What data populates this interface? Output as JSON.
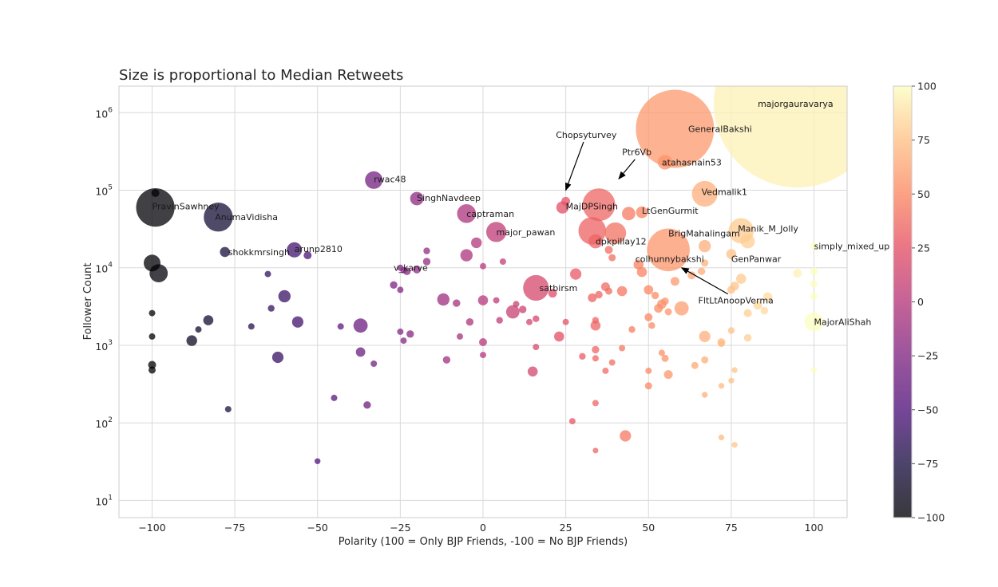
{
  "chart_data": {
    "type": "scatter",
    "title": "Size is proportional to Median Retweets",
    "xlabel": "Polarity (100 = Only BJP Friends, -100 = No BJP Friends)",
    "ylabel": "Follower Count",
    "xlim": [
      -110,
      110
    ],
    "ylim": [
      6,
      2200000
    ],
    "yscale": "log",
    "grid": true,
    "x_ticks": [
      {
        "value": -100,
        "label": "−100"
      },
      {
        "value": -75,
        "label": "−75"
      },
      {
        "value": -50,
        "label": "−50"
      },
      {
        "value": -25,
        "label": "−25"
      },
      {
        "value": 0,
        "label": "0"
      },
      {
        "value": 25,
        "label": "25"
      },
      {
        "value": 50,
        "label": "50"
      },
      {
        "value": 75,
        "label": "75"
      },
      {
        "value": 100,
        "label": "100"
      }
    ],
    "y_ticks": [
      {
        "value": 10,
        "base": "10",
        "exp": "1"
      },
      {
        "value": 100,
        "base": "10",
        "exp": "2"
      },
      {
        "value": 1000,
        "base": "10",
        "exp": "3"
      },
      {
        "value": 10000,
        "base": "10",
        "exp": "4"
      },
      {
        "value": 100000,
        "base": "10",
        "exp": "5"
      },
      {
        "value": 1000000,
        "base": "10",
        "exp": "6"
      }
    ],
    "colorbar": {
      "colormap": "magma",
      "min": -100,
      "max": 100,
      "ticks": [
        {
          "value": 100,
          "label": "100"
        },
        {
          "value": 75,
          "label": "75"
        },
        {
          "value": 50,
          "label": "50"
        },
        {
          "value": 25,
          "label": "25"
        },
        {
          "value": 0,
          "label": "0"
        },
        {
          "value": -25,
          "label": "−25"
        },
        {
          "value": -50,
          "label": "−50"
        },
        {
          "value": -75,
          "label": "−75"
        },
        {
          "value": -100,
          "label": "−100"
        }
      ]
    },
    "points": [
      {
        "x": 95,
        "y": 1300000,
        "s": 11000
      },
      {
        "x": 58,
        "y": 620000,
        "s": 2400
      },
      {
        "x": 55,
        "y": 230000,
        "s": 85
      },
      {
        "x": 67,
        "y": 90000,
        "s": 260
      },
      {
        "x": 35,
        "y": 65000,
        "s": 420
      },
      {
        "x": 44,
        "y": 50000,
        "s": 70
      },
      {
        "x": 48,
        "y": 52000,
        "s": 55
      },
      {
        "x": 25,
        "y": 72000,
        "s": 30
      },
      {
        "x": 24,
        "y": 60000,
        "s": 60
      },
      {
        "x": 33,
        "y": 30000,
        "s": 300
      },
      {
        "x": 40,
        "y": 28000,
        "s": 180
      },
      {
        "x": 34,
        "y": 22000,
        "s": 80
      },
      {
        "x": 56,
        "y": 17000,
        "s": 720
      },
      {
        "x": 78,
        "y": 30000,
        "s": 250
      },
      {
        "x": 80,
        "y": 22000,
        "s": 80
      },
      {
        "x": 67,
        "y": 19000,
        "s": 60
      },
      {
        "x": 75,
        "y": 15000,
        "s": 40
      },
      {
        "x": 100,
        "y": 19000,
        "s": 22
      },
      {
        "x": 100,
        "y": 9000,
        "s": 25
      },
      {
        "x": 95,
        "y": 8500,
        "s": 30
      },
      {
        "x": 100,
        "y": 6200,
        "s": 22
      },
      {
        "x": 100,
        "y": 4300,
        "s": 20
      },
      {
        "x": 100,
        "y": 2000,
        "s": 140
      },
      {
        "x": 100,
        "y": 480,
        "s": 14
      },
      {
        "x": 78,
        "y": 7200,
        "s": 40
      },
      {
        "x": 76,
        "y": 5800,
        "s": 30
      },
      {
        "x": 75,
        "y": 5200,
        "s": 25
      },
      {
        "x": 86,
        "y": 4200,
        "s": 35
      },
      {
        "x": 83,
        "y": 3300,
        "s": 30
      },
      {
        "x": 80,
        "y": 2600,
        "s": 25
      },
      {
        "x": 85,
        "y": 2800,
        "s": 22
      },
      {
        "x": 72,
        "y": 1100,
        "s": 25
      },
      {
        "x": 75,
        "y": 1550,
        "s": 18
      },
      {
        "x": 80,
        "y": 1250,
        "s": 22
      },
      {
        "x": 67,
        "y": 1300,
        "s": 50
      },
      {
        "x": 72,
        "y": 1050,
        "s": 18
      },
      {
        "x": 67,
        "y": 650,
        "s": 20
      },
      {
        "x": 64,
        "y": 550,
        "s": 20
      },
      {
        "x": 76,
        "y": 480,
        "s": 14
      },
      {
        "x": 75,
        "y": 350,
        "s": 14
      },
      {
        "x": 72,
        "y": 300,
        "s": 14
      },
      {
        "x": 67,
        "y": 230,
        "s": 14
      },
      {
        "x": 72,
        "y": 65,
        "s": 14
      },
      {
        "x": 76,
        "y": 52,
        "s": 14
      },
      {
        "x": 60,
        "y": 3000,
        "s": 80
      },
      {
        "x": 54,
        "y": 3400,
        "s": 35
      },
      {
        "x": 53,
        "y": 3000,
        "s": 30
      },
      {
        "x": 55,
        "y": 3700,
        "s": 22
      },
      {
        "x": 52,
        "y": 4400,
        "s": 22
      },
      {
        "x": 50,
        "y": 5200,
        "s": 35
      },
      {
        "x": 50,
        "y": 2300,
        "s": 25
      },
      {
        "x": 56,
        "y": 2700,
        "s": 20
      },
      {
        "x": 51,
        "y": 1800,
        "s": 18
      },
      {
        "x": 58,
        "y": 6700,
        "s": 30
      },
      {
        "x": 63,
        "y": 8000,
        "s": 25
      },
      {
        "x": 66,
        "y": 9000,
        "s": 22
      },
      {
        "x": 67,
        "y": 11500,
        "s": 20
      },
      {
        "x": 47,
        "y": 11000,
        "s": 40
      },
      {
        "x": 48,
        "y": 8800,
        "s": 40
      },
      {
        "x": 38,
        "y": 17000,
        "s": 25
      },
      {
        "x": 39,
        "y": 13500,
        "s": 20
      },
      {
        "x": 28,
        "y": 8300,
        "s": 50
      },
      {
        "x": 37,
        "y": 5700,
        "s": 30
      },
      {
        "x": 38,
        "y": 5000,
        "s": 20
      },
      {
        "x": 42,
        "y": 5000,
        "s": 40
      },
      {
        "x": 35,
        "y": 4500,
        "s": 22
      },
      {
        "x": 33,
        "y": 4100,
        "s": 30
      },
      {
        "x": 34,
        "y": 1800,
        "s": 40
      },
      {
        "x": 34,
        "y": 2100,
        "s": 18
      },
      {
        "x": 45,
        "y": 1600,
        "s": 18
      },
      {
        "x": 42,
        "y": 920,
        "s": 16
      },
      {
        "x": 34,
        "y": 880,
        "s": 22
      },
      {
        "x": 30,
        "y": 720,
        "s": 18
      },
      {
        "x": 34,
        "y": 680,
        "s": 16
      },
      {
        "x": 39,
        "y": 600,
        "s": 16
      },
      {
        "x": 37,
        "y": 470,
        "s": 16
      },
      {
        "x": 50,
        "y": 470,
        "s": 16
      },
      {
        "x": 56,
        "y": 420,
        "s": 30
      },
      {
        "x": 54,
        "y": 800,
        "s": 16
      },
      {
        "x": 55,
        "y": 680,
        "s": 20
      },
      {
        "x": 50,
        "y": 300,
        "s": 20
      },
      {
        "x": 34,
        "y": 180,
        "s": 16
      },
      {
        "x": 27,
        "y": 105,
        "s": 16
      },
      {
        "x": 43,
        "y": 68,
        "s": 50
      },
      {
        "x": 34,
        "y": 44,
        "s": 12
      },
      {
        "x": 23,
        "y": 1300,
        "s": 40
      },
      {
        "x": 25,
        "y": 2000,
        "s": 16
      },
      {
        "x": 16,
        "y": 5500,
        "s": 260
      },
      {
        "x": 21,
        "y": 4700,
        "s": 30
      },
      {
        "x": 9,
        "y": 2700,
        "s": 70
      },
      {
        "x": 12,
        "y": 2900,
        "s": 22
      },
      {
        "x": 5,
        "y": 2100,
        "s": 18
      },
      {
        "x": 10,
        "y": 3400,
        "s": 16
      },
      {
        "x": 14,
        "y": 2000,
        "s": 16
      },
      {
        "x": 16,
        "y": 2200,
        "s": 18
      },
      {
        "x": 16,
        "y": 950,
        "s": 16
      },
      {
        "x": 15,
        "y": 460,
        "s": 40
      },
      {
        "x": 0,
        "y": 3800,
        "s": 40
      },
      {
        "x": 0,
        "y": 1100,
        "s": 25
      },
      {
        "x": 0,
        "y": 750,
        "s": 16
      },
      {
        "x": 4,
        "y": 29000,
        "s": 160
      },
      {
        "x": -5,
        "y": 50000,
        "s": 140
      },
      {
        "x": -2,
        "y": 21000,
        "s": 45
      },
      {
        "x": -5,
        "y": 14500,
        "s": 60
      },
      {
        "x": 0,
        "y": 10500,
        "s": 16
      },
      {
        "x": 6,
        "y": 12000,
        "s": 16
      },
      {
        "x": 4,
        "y": 3800,
        "s": 16
      },
      {
        "x": -4,
        "y": 2000,
        "s": 22
      },
      {
        "x": -7,
        "y": 1300,
        "s": 16
      },
      {
        "x": -11,
        "y": 650,
        "s": 22
      },
      {
        "x": -8,
        "y": 3500,
        "s": 22
      },
      {
        "x": -12,
        "y": 3900,
        "s": 60
      },
      {
        "x": -20,
        "y": 78000,
        "s": 70
      },
      {
        "x": -33,
        "y": 135000,
        "s": 120
      },
      {
        "x": -17,
        "y": 16500,
        "s": 18
      },
      {
        "x": -17,
        "y": 12000,
        "s": 22
      },
      {
        "x": -20,
        "y": 9500,
        "s": 25
      },
      {
        "x": -23,
        "y": 9000,
        "s": 22
      },
      {
        "x": -25,
        "y": 10000,
        "s": 16
      },
      {
        "x": -24,
        "y": 9300,
        "s": 16
      },
      {
        "x": -27,
        "y": 6000,
        "s": 22
      },
      {
        "x": -25,
        "y": 5200,
        "s": 16
      },
      {
        "x": -22,
        "y": 1400,
        "s": 22
      },
      {
        "x": -25,
        "y": 1500,
        "s": 16
      },
      {
        "x": -24,
        "y": 1150,
        "s": 16
      },
      {
        "x": -37,
        "y": 1800,
        "s": 80
      },
      {
        "x": -37,
        "y": 820,
        "s": 35
      },
      {
        "x": -33,
        "y": 580,
        "s": 16
      },
      {
        "x": -35,
        "y": 170,
        "s": 22
      },
      {
        "x": -45,
        "y": 210,
        "s": 16
      },
      {
        "x": -43,
        "y": 1750,
        "s": 16
      },
      {
        "x": -50,
        "y": 32,
        "s": 14
      },
      {
        "x": -57,
        "y": 17000,
        "s": 90
      },
      {
        "x": -53,
        "y": 14500,
        "s": 25
      },
      {
        "x": -60,
        "y": 4300,
        "s": 60
      },
      {
        "x": -56,
        "y": 2000,
        "s": 50
      },
      {
        "x": -62,
        "y": 700,
        "s": 50
      },
      {
        "x": -64,
        "y": 3000,
        "s": 18
      },
      {
        "x": -65,
        "y": 8300,
        "s": 16
      },
      {
        "x": -70,
        "y": 1750,
        "s": 16
      },
      {
        "x": -78,
        "y": 16000,
        "s": 40
      },
      {
        "x": -80,
        "y": 45000,
        "s": 330
      },
      {
        "x": -99,
        "y": 60000,
        "s": 580
      },
      {
        "x": -99,
        "y": 92000,
        "s": 25
      },
      {
        "x": -100,
        "y": 11500,
        "s": 110
      },
      {
        "x": -98,
        "y": 8500,
        "s": 130
      },
      {
        "x": -100,
        "y": 2600,
        "s": 16
      },
      {
        "x": -100,
        "y": 1300,
        "s": 16
      },
      {
        "x": -100,
        "y": 560,
        "s": 25
      },
      {
        "x": -100,
        "y": 480,
        "s": 20
      },
      {
        "x": -83,
        "y": 2100,
        "s": 40
      },
      {
        "x": -86,
        "y": 1600,
        "s": 16
      },
      {
        "x": -88,
        "y": 1150,
        "s": 45
      },
      {
        "x": -77,
        "y": 150,
        "s": 16
      }
    ],
    "labels": [
      {
        "text": "majorgauravarya",
        "x": 83,
        "y": 1300000
      },
      {
        "text": "GeneralBakshi",
        "x": 62,
        "y": 620000
      },
      {
        "text": "atahasnain53",
        "x": 54,
        "y": 230000
      },
      {
        "text": "Vedmalik1",
        "x": 66,
        "y": 95000
      },
      {
        "text": "LtGenGurmit",
        "x": 48,
        "y": 55000
      },
      {
        "text": "MajDPSingh",
        "x": 25,
        "y": 62000
      },
      {
        "text": "BrigMahalingam",
        "x": 56,
        "y": 28000
      },
      {
        "text": "Manik_M_Jolly",
        "x": 77,
        "y": 32000
      },
      {
        "text": "dpkpillay12",
        "x": 34,
        "y": 22000
      },
      {
        "text": "simply_mixed_up",
        "x": 100,
        "y": 19000
      },
      {
        "text": "colhunnybakshi",
        "x": 46,
        "y": 13000
      },
      {
        "text": "GenPanwar",
        "x": 75,
        "y": 13000
      },
      {
        "text": "satbirsm",
        "x": 17,
        "y": 5500
      },
      {
        "text": "MajorAliShah",
        "x": 100,
        "y": 2000
      },
      {
        "text": "captraman",
        "x": -5,
        "y": 50000
      },
      {
        "text": "major_pawan",
        "x": 4,
        "y": 29000
      },
      {
        "text": "SinghNavdeep",
        "x": -20,
        "y": 80000
      },
      {
        "text": "rwac48",
        "x": -33,
        "y": 140000
      },
      {
        "text": "PravinSawhney",
        "x": -100,
        "y": 62000
      },
      {
        "text": "AnumaVidisha",
        "x": -81,
        "y": 45000
      },
      {
        "text": "shokkmrsingh",
        "x": -77,
        "y": 16000
      },
      {
        "text": "arunp2810",
        "x": -57,
        "y": 17500
      },
      {
        "text": "v_karve",
        "x": -27,
        "y": 10000
      }
    ],
    "arrows": [
      {
        "text": "Chopsyturvey",
        "text_x": 22,
        "text_y": 520000,
        "to_x": 25,
        "to_y": 100000
      },
      {
        "text": "Ptr6Vb",
        "text_x": 42,
        "text_y": 310000,
        "to_x": 41,
        "to_y": 140000
      },
      {
        "text": "FltLtAnoopVerma",
        "text_x": 65,
        "text_y": 3800,
        "to_x": 60,
        "to_y": 10000
      }
    ]
  }
}
